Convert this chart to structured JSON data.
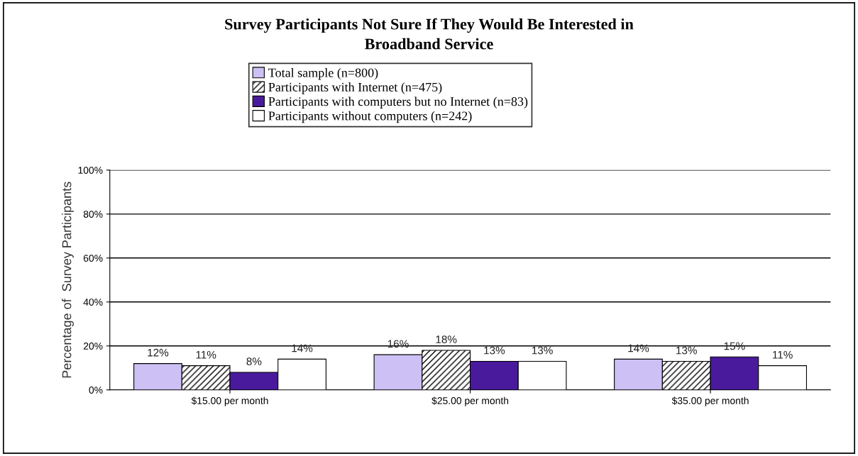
{
  "chart_data": {
    "type": "bar",
    "title": "Survey Participants Not Sure If They Would Be Interested in\nBroadband Service",
    "ylabel": "Percentage of  Survey Participants",
    "categories": [
      "$15.00 per month",
      "$25.00 per month",
      "$35.00 per month"
    ],
    "series": [
      {
        "name": "Total sample (n=800)",
        "color": "#ccc0f4",
        "values": [
          12,
          16,
          14
        ],
        "value_labels": [
          "12%",
          "16%",
          "14%"
        ]
      },
      {
        "name": "Participants with Internet (n=475)",
        "color": "#000000",
        "values": [
          11,
          18,
          13
        ],
        "value_labels": [
          "11%",
          "18%",
          "13%"
        ]
      },
      {
        "name": "Participants with computers but no Internet (n=83)",
        "color": "#4a1a9c",
        "values": [
          8,
          13,
          15
        ],
        "value_labels": [
          "8%",
          "13%",
          "15%"
        ]
      },
      {
        "name": "Participants without computers (n=242)",
        "color": "#ffffff",
        "values": [
          14,
          13,
          11
        ],
        "value_labels": [
          "14%",
          "13%",
          "11%"
        ]
      }
    ],
    "ylim": [
      0,
      100
    ],
    "yticks": [
      {
        "value": 0,
        "label": "0%"
      },
      {
        "value": 20,
        "label": "20%"
      },
      {
        "value": 40,
        "label": "40%"
      },
      {
        "value": 60,
        "label": "60%"
      },
      {
        "value": 80,
        "label": "80%"
      },
      {
        "value": 100,
        "label": "100%"
      }
    ],
    "grid": "y",
    "legend": "top"
  }
}
